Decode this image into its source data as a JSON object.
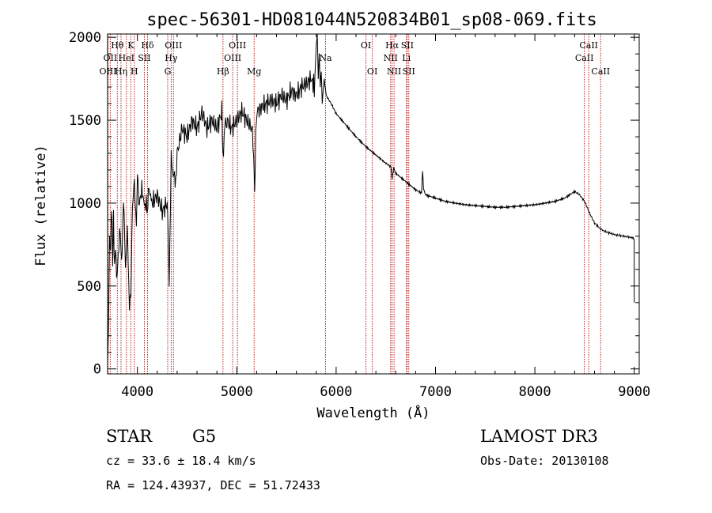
{
  "chart_data": {
    "type": "line",
    "title": "spec-56301-HD081044N520834B01_sp08-069.fits",
    "xlabel": "Wavelength (Å)",
    "ylabel": "Flux (relative)",
    "xlim": [
      3700,
      9050
    ],
    "ylim": [
      -30,
      2020
    ],
    "xticks": [
      4000,
      5000,
      6000,
      7000,
      8000,
      9000
    ],
    "yticks": [
      0,
      500,
      1000,
      1500,
      2000
    ],
    "grid": false,
    "line_color": "#000000",
    "marker_color": "#b22222",
    "series": [
      {
        "x": [
          3700,
          3710,
          3720,
          3730,
          3740,
          3750,
          3760,
          3770,
          3780,
          3790,
          3800,
          3820,
          3840,
          3860,
          3880,
          3900,
          3920,
          3935,
          3950,
          3970,
          3990,
          4000,
          4020,
          4050,
          4070,
          4090,
          4100,
          4110,
          4150,
          4200,
          4250,
          4300,
          4320,
          4340,
          4360,
          4380,
          4400,
          4450,
          4500,
          4550,
          4600,
          4650,
          4700,
          4750,
          4800,
          4850,
          4860,
          4880,
          4900,
          4950,
          5000,
          5050,
          5100,
          5150,
          5170,
          5180,
          5190,
          5200,
          5250,
          5300,
          5350,
          5400,
          5450,
          5500,
          5550,
          5600,
          5650,
          5700,
          5750,
          5780,
          5800,
          5810,
          5820,
          5830,
          5840,
          5850,
          5860,
          5880,
          5900,
          5950,
          6000,
          6100,
          6200,
          6300,
          6400,
          6500,
          6550,
          6563,
          6580,
          6600,
          6700,
          6800,
          6860,
          6870,
          6880,
          6900,
          7000,
          7100,
          7200,
          7300,
          7400,
          7500,
          7600,
          7700,
          7800,
          7900,
          8000,
          8100,
          8200,
          8300,
          8400,
          8450,
          8500,
          8550,
          8600,
          8650,
          8700,
          8750,
          8800,
          8850,
          8900,
          8950,
          8990,
          9000
        ],
        "y": [
          0,
          300,
          800,
          700,
          1000,
          650,
          900,
          600,
          750,
          550,
          600,
          850,
          650,
          1000,
          650,
          800,
          400,
          450,
          1000,
          1100,
          900,
          1150,
          1000,
          1100,
          950,
          1050,
          900,
          1100,
          1000,
          1050,
          950,
          1000,
          550,
          1250,
          1200,
          1100,
          1300,
          1450,
          1400,
          1500,
          1450,
          1550,
          1450,
          1500,
          1450,
          1550,
          1300,
          1450,
          1500,
          1450,
          1500,
          1550,
          1500,
          1450,
          1300,
          1050,
          1400,
          1550,
          1580,
          1600,
          1620,
          1600,
          1650,
          1620,
          1680,
          1650,
          1700,
          1720,
          1750,
          1700,
          1950,
          2020,
          1750,
          1900,
          1700,
          1800,
          1600,
          1750,
          1650,
          1600,
          1540,
          1470,
          1400,
          1340,
          1290,
          1240,
          1220,
          1150,
          1210,
          1180,
          1130,
          1080,
          1060,
          1200,
          1080,
          1050,
          1030,
          1010,
          1000,
          990,
          985,
          980,
          975,
          975,
          980,
          985,
          990,
          1000,
          1010,
          1030,
          1070,
          1050,
          1010,
          940,
          880,
          850,
          830,
          820,
          810,
          805,
          800,
          795,
          790,
          780
        ]
      }
    ],
    "spectral_lines": [
      {
        "label": "Hθ",
        "x": 3798,
        "row": 0
      },
      {
        "label": "OII",
        "x": 3727,
        "row": 1
      },
      {
        "label": "OIII",
        "x": 3704,
        "row": 2
      },
      {
        "label": "Hη",
        "x": 3835,
        "row": 2
      },
      {
        "label": "K",
        "x": 3934,
        "row": 0
      },
      {
        "label": "HeI",
        "x": 3889,
        "row": 1
      },
      {
        "label": "H",
        "x": 3969,
        "row": 2
      },
      {
        "label": "SII",
        "x": 4070,
        "row": 1
      },
      {
        "label": "Hδ",
        "x": 4102,
        "row": 0
      },
      {
        "label": "OIII",
        "x": 4363,
        "row": 0
      },
      {
        "label": "Hγ",
        "x": 4340,
        "row": 1
      },
      {
        "label": "G",
        "x": 4305,
        "row": 2
      },
      {
        "label": "Hβ",
        "x": 4861,
        "row": 2
      },
      {
        "label": "OIII",
        "x": 4959,
        "row": 1
      },
      {
        "label": "OIII",
        "x": 5007,
        "row": 0
      },
      {
        "label": "Mg",
        "x": 5175,
        "row": 2
      },
      {
        "label": "Na",
        "x": 5893,
        "row": 1
      },
      {
        "label": "OI",
        "x": 6300,
        "row": 0
      },
      {
        "label": "OI",
        "x": 6364,
        "row": 2
      },
      {
        "label": "Hα",
        "x": 6563,
        "row": 0
      },
      {
        "label": "NII",
        "x": 6548,
        "row": 1
      },
      {
        "label": "NII",
        "x": 6583,
        "row": 2
      },
      {
        "label": "SII",
        "x": 6716,
        "row": 0
      },
      {
        "label": "Li",
        "x": 6707,
        "row": 1
      },
      {
        "label": "SII",
        "x": 6731,
        "row": 2
      },
      {
        "label": "CaII",
        "x": 8542,
        "row": 0
      },
      {
        "label": "CaII",
        "x": 8498,
        "row": 1
      },
      {
        "label": "CaII",
        "x": 8662,
        "row": 2
      }
    ]
  },
  "info": {
    "object_class": "STAR",
    "subclass": "G5",
    "survey": "LAMOST DR3",
    "cz": "cz = 33.6 ± 18.4 km/s",
    "obs_date": "Obs-Date: 20130108",
    "coords": "RA = 124.43937, DEC =  51.72433"
  }
}
